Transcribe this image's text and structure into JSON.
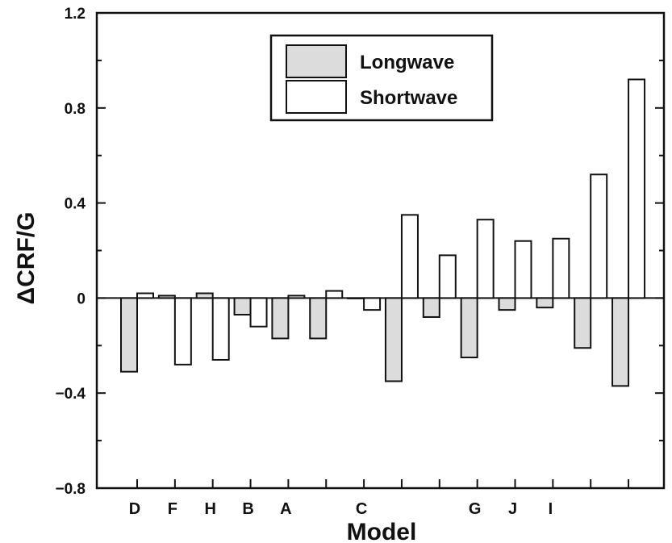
{
  "chart_data": {
    "type": "bar",
    "xlabel": "Model",
    "ylabel": "ΔCRF/G",
    "ylim": [
      -0.8,
      1.2
    ],
    "yticks": [
      -0.8,
      -0.4,
      0,
      0.4,
      0.8,
      1.2
    ],
    "ytick_labels": [
      "−0.8",
      "−0.4",
      "0",
      "0.4",
      "0.8",
      "1.2"
    ],
    "grid": false,
    "legend_position": "top-center",
    "categories": [
      "D",
      "F",
      "H",
      "B",
      "A",
      "",
      "C",
      "",
      "",
      "G",
      "J",
      "I",
      "",
      ""
    ],
    "series": [
      {
        "name": "Longwave",
        "fill": "#dcdcdc",
        "values": [
          -0.31,
          0.01,
          0.02,
          -0.07,
          -0.17,
          -0.17,
          0.0,
          -0.35,
          -0.08,
          -0.25,
          -0.05,
          -0.04,
          -0.21,
          -0.37
        ]
      },
      {
        "name": "Shortwave",
        "fill": "#ffffff",
        "values": [
          0.02,
          -0.28,
          -0.26,
          -0.12,
          0.01,
          0.03,
          -0.05,
          0.35,
          0.18,
          0.33,
          0.24,
          0.25,
          0.52,
          0.92
        ]
      }
    ]
  }
}
